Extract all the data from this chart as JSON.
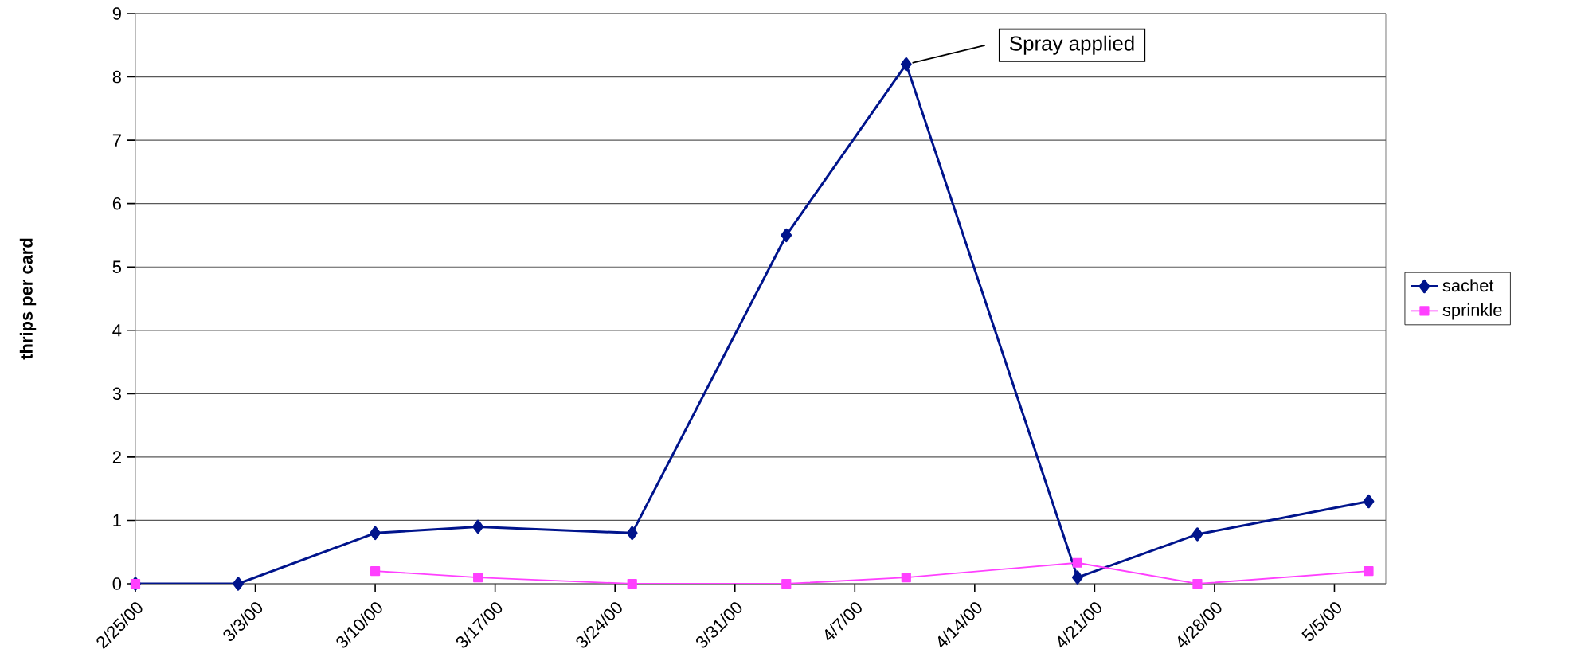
{
  "chart_data": {
    "type": "line",
    "ylabel": "thrips per card",
    "x": [
      "2000-02-25",
      "2000-03-02",
      "2000-03-10",
      "2000-03-16",
      "2000-03-25",
      "2000-04-03",
      "2000-04-10",
      "2000-04-20",
      "2000-04-27",
      "2000-05-07"
    ],
    "series": [
      {
        "name": "sachet",
        "color": "#00148c",
        "marker": "diamond",
        "values": [
          0,
          0,
          0.8,
          0.9,
          0.8,
          5.5,
          8.2,
          0.1,
          0.78,
          1.3
        ]
      },
      {
        "name": "sprinkle",
        "color": "#ff40ff",
        "marker": "square",
        "values": [
          0,
          null,
          0.2,
          0.1,
          0,
          0,
          0.1,
          0.33,
          0,
          0.2
        ]
      }
    ],
    "xlim": [
      "2000-02-25",
      "2000-05-08"
    ],
    "xticks": [
      {
        "value": "2000-02-25",
        "label": "2/25/00"
      },
      {
        "value": "2000-03-03",
        "label": "3/3/00"
      },
      {
        "value": "2000-03-10",
        "label": "3/10/00"
      },
      {
        "value": "2000-03-17",
        "label": "3/17/00"
      },
      {
        "value": "2000-03-24",
        "label": "3/24/00"
      },
      {
        "value": "2000-03-31",
        "label": "3/31/00"
      },
      {
        "value": "2000-04-07",
        "label": "4/7/00"
      },
      {
        "value": "2000-04-14",
        "label": "4/14/00"
      },
      {
        "value": "2000-04-21",
        "label": "4/21/00"
      },
      {
        "value": "2000-04-28",
        "label": "4/28/00"
      },
      {
        "value": "2000-05-05",
        "label": "5/5/00"
      }
    ],
    "ylim": [
      0,
      9
    ],
    "yticks": [
      0,
      1,
      2,
      3,
      4,
      5,
      6,
      7,
      8,
      9
    ],
    "grid": "y",
    "legend": "right",
    "annotations": [
      {
        "text": "Spray applied",
        "x": "2000-04-10",
        "y": 8.2
      }
    ]
  }
}
